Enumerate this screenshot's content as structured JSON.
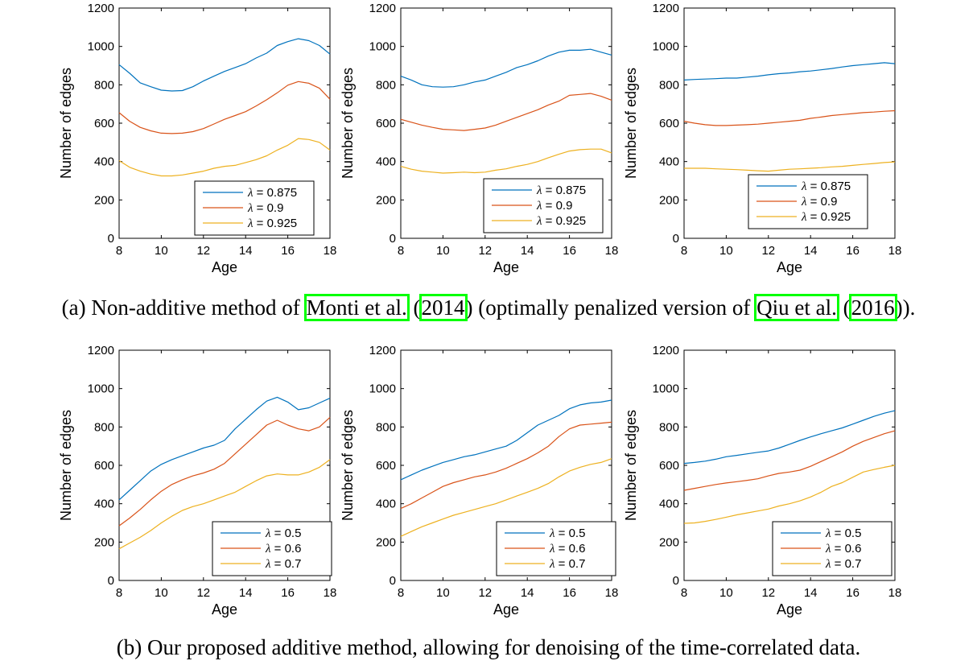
{
  "captions": {
    "a": {
      "prefix": "(a) Non-additive method of ",
      "cite1_author": "Monti et al.",
      "sep1": " (",
      "cite1_year": "2014",
      "mid": ") (optimally penalized version of ",
      "cite2_author": "Qiu et al.",
      "sep2": " (",
      "cite2_year": "2016",
      "suffix": "))."
    },
    "b": {
      "text": "(b) Our proposed additive method, allowing for denoising of the time-correlated data."
    }
  },
  "colors": {
    "blue": "#0072BD",
    "orange": "#D95319",
    "yellow": "#EDB120",
    "cite_box": "#00ff00"
  },
  "chart_data": [
    {
      "type": "line",
      "row": "a",
      "xlabel": "Age",
      "ylabel": "Number of edges",
      "xlim": [
        8,
        18
      ],
      "ylim": [
        0,
        1200
      ],
      "xticks": [
        "8",
        "10",
        "12",
        "14",
        "16",
        "18"
      ],
      "yticks": [
        "0",
        "200",
        "400",
        "600",
        "800",
        "1000",
        "1200"
      ],
      "x": [
        8,
        8.5,
        9,
        9.5,
        10,
        10.5,
        11,
        11.5,
        12,
        12.5,
        13,
        13.5,
        14,
        14.5,
        15,
        15.5,
        16,
        16.5,
        17,
        17.5,
        18
      ],
      "series": [
        {
          "name": "λ = 0.875",
          "symbol": "λ",
          "value_label": " = 0.875",
          "color": "blue",
          "values": [
            905,
            860,
            810,
            790,
            772,
            768,
            770,
            790,
            820,
            845,
            870,
            890,
            910,
            940,
            965,
            1005,
            1025,
            1040,
            1030,
            1005,
            960
          ]
        },
        {
          "name": "λ = 0.9",
          "symbol": "λ",
          "value_label": " = 0.9",
          "color": "orange",
          "values": [
            655,
            610,
            578,
            560,
            548,
            546,
            548,
            556,
            572,
            596,
            620,
            640,
            660,
            690,
            722,
            758,
            798,
            817,
            808,
            782,
            725
          ]
        },
        {
          "name": "λ = 0.925",
          "symbol": "λ",
          "value_label": " = 0.925",
          "color": "yellow",
          "values": [
            405,
            370,
            350,
            335,
            325,
            325,
            330,
            340,
            350,
            365,
            375,
            380,
            395,
            410,
            430,
            460,
            485,
            520,
            515,
            500,
            460
          ]
        }
      ]
    },
    {
      "type": "line",
      "row": "a",
      "xlabel": "Age",
      "ylabel": "Number of edges",
      "xlim": [
        8,
        18
      ],
      "ylim": [
        0,
        1200
      ],
      "xticks": [
        "8",
        "10",
        "12",
        "14",
        "16",
        "18"
      ],
      "yticks": [
        "0",
        "200",
        "400",
        "600",
        "800",
        "1000",
        "1200"
      ],
      "x": [
        8,
        8.5,
        9,
        9.5,
        10,
        10.5,
        11,
        11.5,
        12,
        12.5,
        13,
        13.5,
        14,
        14.5,
        15,
        15.5,
        16,
        16.5,
        17,
        17.5,
        18
      ],
      "series": [
        {
          "name": "λ = 0.875",
          "symbol": "λ",
          "value_label": " = 0.875",
          "color": "blue",
          "values": [
            845,
            825,
            800,
            790,
            788,
            790,
            800,
            815,
            825,
            845,
            865,
            890,
            905,
            925,
            950,
            970,
            980,
            980,
            985,
            970,
            955
          ]
        },
        {
          "name": "λ = 0.9",
          "symbol": "λ",
          "value_label": " = 0.9",
          "color": "orange",
          "values": [
            620,
            605,
            590,
            578,
            568,
            565,
            562,
            568,
            575,
            590,
            610,
            630,
            650,
            670,
            695,
            715,
            745,
            750,
            755,
            740,
            720
          ]
        },
        {
          "name": "λ = 0.925",
          "symbol": "λ",
          "value_label": " = 0.925",
          "color": "yellow",
          "values": [
            375,
            360,
            350,
            345,
            340,
            342,
            345,
            342,
            345,
            355,
            362,
            375,
            385,
            400,
            420,
            438,
            455,
            462,
            465,
            465,
            445
          ]
        }
      ]
    },
    {
      "type": "line",
      "row": "a",
      "xlabel": "Age",
      "ylabel": "Number of edges",
      "xlim": [
        8,
        18
      ],
      "ylim": [
        0,
        1200
      ],
      "xticks": [
        "8",
        "10",
        "12",
        "14",
        "16",
        "18"
      ],
      "yticks": [
        "0",
        "200",
        "400",
        "600",
        "800",
        "1000",
        "1200"
      ],
      "x": [
        8,
        8.5,
        9,
        9.5,
        10,
        10.5,
        11,
        11.5,
        12,
        12.5,
        13,
        13.5,
        14,
        14.5,
        15,
        15.5,
        16,
        16.5,
        17,
        17.5,
        18
      ],
      "series": [
        {
          "name": "λ = 0.875",
          "symbol": "λ",
          "value_label": " = 0.875",
          "color": "blue",
          "values": [
            825,
            828,
            830,
            832,
            835,
            835,
            840,
            845,
            852,
            858,
            862,
            868,
            872,
            878,
            885,
            893,
            900,
            905,
            910,
            915,
            910
          ]
        },
        {
          "name": "λ = 0.9",
          "symbol": "λ",
          "value_label": " = 0.9",
          "color": "orange",
          "values": [
            610,
            600,
            592,
            588,
            588,
            590,
            592,
            595,
            600,
            605,
            610,
            615,
            625,
            632,
            640,
            645,
            650,
            655,
            658,
            662,
            665
          ]
        },
        {
          "name": "λ = 0.925",
          "symbol": "λ",
          "value_label": " = 0.925",
          "color": "yellow",
          "values": [
            365,
            365,
            365,
            362,
            360,
            358,
            355,
            352,
            350,
            355,
            360,
            362,
            365,
            368,
            372,
            375,
            380,
            385,
            390,
            395,
            398
          ]
        }
      ]
    },
    {
      "type": "line",
      "row": "b",
      "xlabel": "Age",
      "ylabel": "Number of edges",
      "xlim": [
        8,
        18
      ],
      "ylim": [
        0,
        1200
      ],
      "xticks": [
        "8",
        "10",
        "12",
        "14",
        "16",
        "18"
      ],
      "yticks": [
        "0",
        "200",
        "400",
        "600",
        "800",
        "1000",
        "1200"
      ],
      "x": [
        8,
        8.5,
        9,
        9.5,
        10,
        10.5,
        11,
        11.5,
        12,
        12.5,
        13,
        13.5,
        14,
        14.5,
        15,
        15.5,
        16,
        16.5,
        17,
        17.5,
        18
      ],
      "series": [
        {
          "name": "λ = 0.5",
          "symbol": "λ",
          "value_label": " = 0.5",
          "color": "blue",
          "values": [
            420,
            470,
            520,
            570,
            605,
            630,
            650,
            670,
            690,
            705,
            730,
            790,
            840,
            890,
            935,
            955,
            930,
            890,
            900,
            925,
            950
          ]
        },
        {
          "name": "λ = 0.6",
          "symbol": "λ",
          "value_label": " = 0.6",
          "color": "orange",
          "values": [
            285,
            325,
            370,
            420,
            465,
            500,
            525,
            545,
            560,
            580,
            610,
            660,
            710,
            760,
            810,
            835,
            810,
            790,
            780,
            800,
            850
          ]
        },
        {
          "name": "λ = 0.7",
          "symbol": "λ",
          "value_label": " = 0.7",
          "color": "yellow",
          "values": [
            165,
            195,
            225,
            260,
            300,
            335,
            365,
            385,
            400,
            420,
            440,
            460,
            490,
            520,
            545,
            555,
            550,
            550,
            565,
            590,
            630
          ]
        }
      ]
    },
    {
      "type": "line",
      "row": "b",
      "xlabel": "Age",
      "ylabel": "Number of edges",
      "xlim": [
        8,
        18
      ],
      "ylim": [
        0,
        1200
      ],
      "xticks": [
        "8",
        "10",
        "12",
        "14",
        "16",
        "18"
      ],
      "yticks": [
        "0",
        "200",
        "400",
        "600",
        "800",
        "1000",
        "1200"
      ],
      "x": [
        8,
        8.5,
        9,
        9.5,
        10,
        10.5,
        11,
        11.5,
        12,
        12.5,
        13,
        13.5,
        14,
        14.5,
        15,
        15.5,
        16,
        16.5,
        17,
        17.5,
        18
      ],
      "series": [
        {
          "name": "λ = 0.5",
          "symbol": "λ",
          "value_label": " = 0.5",
          "color": "blue",
          "values": [
            525,
            550,
            575,
            595,
            615,
            630,
            645,
            655,
            670,
            685,
            700,
            730,
            770,
            810,
            835,
            860,
            895,
            915,
            925,
            930,
            940
          ]
        },
        {
          "name": "λ = 0.6",
          "symbol": "λ",
          "value_label": " = 0.6",
          "color": "orange",
          "values": [
            375,
            400,
            430,
            460,
            490,
            510,
            525,
            540,
            550,
            565,
            585,
            610,
            635,
            665,
            700,
            750,
            790,
            810,
            815,
            820,
            825
          ]
        },
        {
          "name": "λ = 0.7",
          "symbol": "λ",
          "value_label": " = 0.7",
          "color": "yellow",
          "values": [
            230,
            255,
            280,
            300,
            320,
            340,
            355,
            370,
            385,
            400,
            420,
            440,
            460,
            480,
            505,
            540,
            570,
            590,
            605,
            615,
            635
          ]
        }
      ]
    },
    {
      "type": "line",
      "row": "b",
      "xlabel": "Age",
      "ylabel": "Number of edges",
      "xlim": [
        8,
        18
      ],
      "ylim": [
        0,
        1200
      ],
      "xticks": [
        "8",
        "10",
        "12",
        "14",
        "16",
        "18"
      ],
      "yticks": [
        "0",
        "200",
        "400",
        "600",
        "800",
        "1000",
        "1200"
      ],
      "x": [
        8,
        8.5,
        9,
        9.5,
        10,
        10.5,
        11,
        11.5,
        12,
        12.5,
        13,
        13.5,
        14,
        14.5,
        15,
        15.5,
        16,
        16.5,
        17,
        17.5,
        18
      ],
      "series": [
        {
          "name": "λ = 0.5",
          "symbol": "λ",
          "value_label": " = 0.5",
          "color": "blue",
          "values": [
            610,
            615,
            622,
            632,
            645,
            652,
            660,
            668,
            675,
            690,
            710,
            730,
            748,
            765,
            780,
            795,
            815,
            835,
            855,
            872,
            885
          ]
        },
        {
          "name": "λ = 0.6",
          "symbol": "λ",
          "value_label": " = 0.6",
          "color": "orange",
          "values": [
            470,
            480,
            490,
            500,
            508,
            515,
            522,
            530,
            545,
            558,
            565,
            575,
            595,
            620,
            645,
            670,
            700,
            725,
            745,
            765,
            780
          ]
        },
        {
          "name": "λ = 0.7",
          "symbol": "λ",
          "value_label": " = 0.7",
          "color": "yellow",
          "values": [
            298,
            300,
            308,
            318,
            330,
            342,
            352,
            362,
            372,
            388,
            400,
            415,
            435,
            460,
            490,
            510,
            538,
            565,
            578,
            590,
            600
          ]
        }
      ]
    }
  ]
}
